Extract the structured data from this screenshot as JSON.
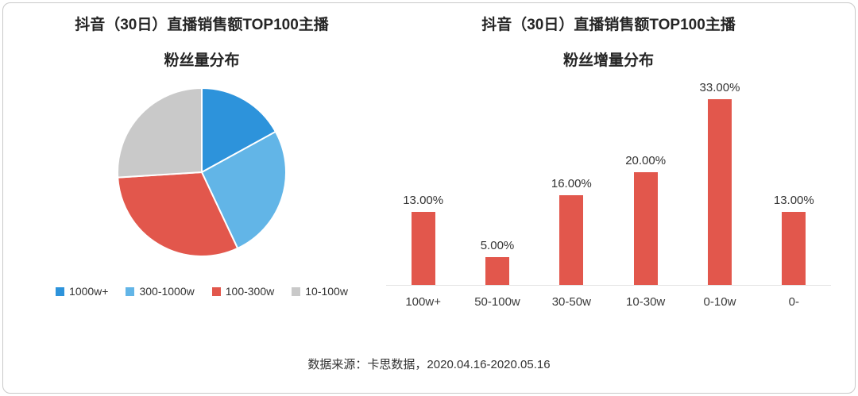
{
  "page": {
    "source_note": "数据来源：卡思数据，2020.04.16-2020.05.16"
  },
  "chart_data": [
    {
      "type": "pie",
      "title": "抖音（30日）直播销售额TOP100主播",
      "subtitle": "粉丝量分布",
      "legend_position": "bottom",
      "slices": [
        {
          "label": "1000w+",
          "value": 17,
          "color": "#2D93DB"
        },
        {
          "label": "300-1000w",
          "value": 26,
          "color": "#62B5E7"
        },
        {
          "label": "100-300w",
          "value": 31,
          "color": "#E2574C"
        },
        {
          "label": "10-100w",
          "value": 26,
          "color": "#C9C9C9"
        }
      ]
    },
    {
      "type": "bar",
      "title": "抖音（30日）直播销售额TOP100主播",
      "subtitle": "粉丝增量分布",
      "categories": [
        "100w+",
        "50-100w",
        "30-50w",
        "10-30w",
        "0-10w",
        "0-"
      ],
      "values": [
        13,
        5,
        16,
        20,
        33,
        13
      ],
      "labels": [
        "13.00%",
        "5.00%",
        "16.00%",
        "20.00%",
        "33.00%",
        "13.00%"
      ],
      "bar_color": "#E2574C",
      "ylim": [
        0,
        36
      ],
      "grid": false,
      "legend_position": "none"
    }
  ]
}
